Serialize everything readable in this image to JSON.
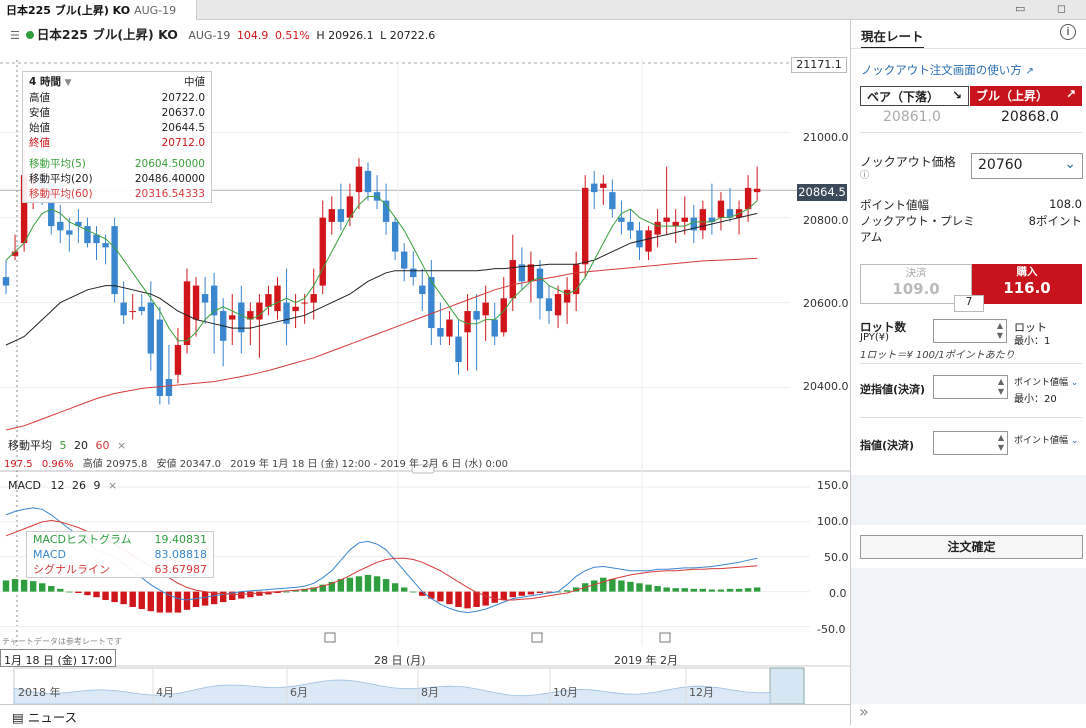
{
  "window": {
    "tab_title": "日本225 ブル(上昇) KO",
    "tab_sub": "AUG-19",
    "controls": "▭ ◻"
  },
  "infobar": {
    "name": "日本225 ブル(上昇) KO",
    "month": "AUG-19",
    "price": "104.9",
    "change": "0.51%",
    "high": "H 20926.1",
    "low": "L 20722.6"
  },
  "legend": {
    "interval": "4 時間",
    "header_right": "中値",
    "rows": [
      {
        "label": "高値",
        "value": "20722.0"
      },
      {
        "label": "安値",
        "value": "20637.0"
      },
      {
        "label": "始値",
        "value": "20644.5"
      },
      {
        "label": "終値",
        "value": "20712.0"
      },
      {
        "label": "移動平均(5)",
        "value": "20604.50000"
      },
      {
        "label": "移動平均(20)",
        "value": "20486.40000"
      },
      {
        "label": "移動平均(60)",
        "value": "20316.54333"
      }
    ]
  },
  "ma_bar": {
    "label": "移動平均",
    "p1": "5",
    "p2": "20",
    "p3": "60",
    "close": "×"
  },
  "range_bar": {
    "v1": "197.5",
    "v2": "0.96%",
    "hi": "高値 20975.8",
    "lo": "安値 20347.0",
    "range": "2019 年 1月 18 日 (金) 12:00 - 2019 年 2月 6 日 (水) 0:00"
  },
  "macd_bar": {
    "label": "MACD",
    "p1": "12",
    "p2": "26",
    "p3": "9",
    "close": "×"
  },
  "macd_legend": {
    "rows": [
      {
        "label": "MACDヒストグラム",
        "value": "19.40831"
      },
      {
        "label": "MACD",
        "value": "83.08818"
      },
      {
        "label": "シグナルライン",
        "value": "63.67987"
      }
    ]
  },
  "footer": {
    "note": "チャートデータは参考レートです",
    "cursor_date": "1月 18 日 (金) 17:00",
    "date_mid": "28 日 (月)",
    "date_right": "2019 年 2月"
  },
  "navigator": {
    "labels": [
      "2018 年",
      "4月",
      "6月",
      "8月",
      "10月",
      "12月"
    ]
  },
  "news": {
    "label": "ニュース"
  },
  "price_axis": {
    "top_label": "21171.1",
    "current": "20864.5",
    "ticks": [
      "21000.0",
      "20800.0",
      "20600.0",
      "20400.0"
    ]
  },
  "macd_axis": {
    "ticks": [
      "150.0",
      "100.0",
      "50.0",
      "0.0",
      "-50.0"
    ]
  },
  "panel": {
    "title": "現在レート",
    "info": "i",
    "help_link": "ノックアウト注文画面の使い方",
    "bear_label": "ベア（下落）",
    "bull_label": "ブル（上昇）",
    "bear_price": "20861.0",
    "bull_price": "20868.0",
    "ko_label": "ノックアウト価格",
    "ko_value": "20760",
    "point_width_label": "ポイント値幅",
    "point_width_value": "108.0",
    "premium_label": "ノックアウト・プレミアム",
    "premium_value": "8ポイント",
    "sell_label": "決済",
    "sell_value": "109.0",
    "buy_label": "購入",
    "buy_value": "116.0",
    "spread": "7",
    "lot_label": "ロット数",
    "lot_sub": "JPY(¥)",
    "lot_unit": "ロット",
    "lot_min": "最小：1",
    "lot_note": "1ロット＝¥ 100/1ポイントあたり",
    "stop_label": "逆指値(決済)",
    "stop_unit": "ポイント値幅",
    "stop_min": "最小：20",
    "limit_label": "指値(決済)",
    "limit_unit": "ポイント値幅",
    "confirm": "注文確定"
  },
  "colors": {
    "up": "#d0161b",
    "down": "#3a86cf",
    "ma5": "#3aa03a",
    "ma20": "#222222",
    "ma60": "#d63a3a",
    "hist": "#2e9e3e"
  },
  "chart_data": [
    {
      "type": "candlestick",
      "title": "日本225 ブル(上昇) KO",
      "ylim": [
        20300,
        21171.1
      ],
      "candles": [
        [
          20660,
          20700,
          20620,
          20640
        ],
        [
          20710,
          20760,
          20700,
          20720
        ],
        [
          20740,
          20960,
          20720,
          20900
        ],
        [
          20880,
          20960,
          20820,
          20900
        ],
        [
          20900,
          20920,
          20830,
          20870
        ],
        [
          20880,
          20900,
          20760,
          20780
        ],
        [
          20790,
          20830,
          20740,
          20770
        ],
        [
          20770,
          20800,
          20720,
          20760
        ],
        [
          20790,
          20820,
          20740,
          20780
        ],
        [
          20780,
          20800,
          20730,
          20740
        ],
        [
          20760,
          20780,
          20700,
          20740
        ],
        [
          20740,
          20760,
          20690,
          20730
        ],
        [
          20780,
          20800,
          20600,
          20620
        ],
        [
          20600,
          20650,
          20550,
          20570
        ],
        [
          20580,
          20620,
          20560,
          20580
        ],
        [
          20590,
          20620,
          20570,
          20580
        ],
        [
          20600,
          20650,
          20440,
          20480
        ],
        [
          20560,
          20590,
          20360,
          20380
        ],
        [
          20420,
          20500,
          20360,
          20380
        ],
        [
          20430,
          20540,
          20410,
          20500
        ],
        [
          20500,
          20680,
          20480,
          20650
        ],
        [
          20560,
          20660,
          20520,
          20640
        ],
        [
          20620,
          20660,
          20550,
          20600
        ],
        [
          20640,
          20670,
          20480,
          20570
        ],
        [
          20580,
          20610,
          20450,
          20510
        ],
        [
          20560,
          20620,
          20500,
          20570
        ],
        [
          20600,
          20640,
          20480,
          20530
        ],
        [
          20560,
          20600,
          20500,
          20580
        ],
        [
          20560,
          20620,
          20470,
          20600
        ],
        [
          20590,
          20640,
          20570,
          20620
        ],
        [
          20580,
          20660,
          20560,
          20640
        ],
        [
          20600,
          20680,
          20500,
          20550
        ],
        [
          20580,
          20620,
          20540,
          20590
        ],
        [
          20600,
          20620,
          20550,
          20600
        ],
        [
          20600,
          20680,
          20560,
          20620
        ],
        [
          20640,
          20840,
          20620,
          20800
        ],
        [
          20790,
          20850,
          20760,
          20820
        ],
        [
          20820,
          20880,
          20770,
          20790
        ],
        [
          20800,
          20880,
          20780,
          20850
        ],
        [
          20860,
          20940,
          20820,
          20920
        ],
        [
          20910,
          20930,
          20840,
          20860
        ],
        [
          20860,
          20900,
          20820,
          20840
        ],
        [
          20840,
          20880,
          20760,
          20790
        ],
        [
          20790,
          20800,
          20700,
          20720
        ],
        [
          20720,
          20740,
          20650,
          20680
        ],
        [
          20680,
          20720,
          20640,
          20660
        ],
        [
          20640,
          20680,
          20580,
          20620
        ],
        [
          20660,
          20700,
          20500,
          20540
        ],
        [
          20540,
          20600,
          20500,
          20520
        ],
        [
          20520,
          20580,
          20500,
          20560
        ],
        [
          20520,
          20560,
          20430,
          20460
        ],
        [
          20530,
          20620,
          20440,
          20580
        ],
        [
          20580,
          20620,
          20440,
          20560
        ],
        [
          20570,
          20640,
          20510,
          20600
        ],
        [
          20560,
          20600,
          20500,
          20520
        ],
        [
          20530,
          20660,
          20520,
          20610
        ],
        [
          20610,
          20760,
          20580,
          20700
        ],
        [
          20690,
          20730,
          20630,
          20650
        ],
        [
          20650,
          20720,
          20600,
          20690
        ],
        [
          20680,
          20700,
          20560,
          20610
        ],
        [
          20610,
          20640,
          20550,
          20580
        ],
        [
          20570,
          20640,
          20540,
          20620
        ],
        [
          20600,
          20660,
          20550,
          20630
        ],
        [
          20620,
          20720,
          20580,
          20690
        ],
        [
          20690,
          20900,
          20660,
          20870
        ],
        [
          20880,
          20910,
          20820,
          20860
        ],
        [
          20870,
          20900,
          20830,
          20880
        ],
        [
          20860,
          20890,
          20800,
          20820
        ],
        [
          20800,
          20840,
          20760,
          20790
        ],
        [
          20790,
          20820,
          20750,
          20770
        ],
        [
          20770,
          20790,
          20700,
          20730
        ],
        [
          20720,
          20780,
          20700,
          20770
        ],
        [
          20760,
          20820,
          20730,
          20790
        ],
        [
          20790,
          20920,
          20760,
          20800
        ],
        [
          20780,
          20820,
          20740,
          20790
        ],
        [
          20790,
          20850,
          20760,
          20800
        ],
        [
          20800,
          20830,
          20740,
          20770
        ],
        [
          20770,
          20840,
          20750,
          20820
        ],
        [
          20800,
          20880,
          20760,
          20790
        ],
        [
          20800,
          20860,
          20770,
          20840
        ],
        [
          20820,
          20870,
          20790,
          20800
        ],
        [
          20800,
          20840,
          20760,
          20820
        ],
        [
          20820,
          20900,
          20790,
          20870
        ],
        [
          20860,
          20920,
          20840,
          20868
        ]
      ],
      "ma5": [
        20700,
        20720,
        20740,
        20780,
        20810,
        20820,
        20810,
        20790,
        20780,
        20770,
        20760,
        20750,
        20730,
        20700,
        20670,
        20640,
        20610,
        20580,
        20540,
        20510,
        20510,
        20530,
        20560,
        20580,
        20590,
        20580,
        20570,
        20560,
        20570,
        20590,
        20600,
        20610,
        20600,
        20610,
        20640,
        20680,
        20720,
        20760,
        20800,
        20830,
        20850,
        20850,
        20830,
        20800,
        20770,
        20730,
        20690,
        20650,
        20620,
        20590,
        20560,
        20550,
        20550,
        20560,
        20560,
        20580,
        20610,
        20630,
        20650,
        20660,
        20640,
        20630,
        20620,
        20630,
        20660,
        20700,
        20740,
        20780,
        20810,
        20820,
        20800,
        20790,
        20780,
        20780,
        20780,
        20780,
        20790,
        20790,
        20790,
        20800,
        20800,
        20810,
        20820,
        20840
      ],
      "ma20": [
        20500,
        20510,
        20520,
        20540,
        20560,
        20580,
        20600,
        20610,
        20620,
        20630,
        20635,
        20640,
        20640,
        20635,
        20630,
        20625,
        20620,
        20610,
        20595,
        20580,
        20570,
        20560,
        20555,
        20550,
        20545,
        20540,
        20540,
        20540,
        20545,
        20550,
        20555,
        20560,
        20565,
        20570,
        20580,
        20590,
        20600,
        20610,
        20620,
        20635,
        20650,
        20660,
        20670,
        20675,
        20675,
        20675,
        20675,
        20675,
        20675,
        20675,
        20675,
        20675,
        20675,
        20677,
        20680,
        20680,
        20682,
        20685,
        20686,
        20688,
        20690,
        20690,
        20690,
        20690,
        20695,
        20700,
        20710,
        20720,
        20730,
        20740,
        20745,
        20750,
        20755,
        20760,
        20765,
        20770,
        20775,
        20780,
        20785,
        20790,
        20795,
        20800,
        20805,
        20810
      ],
      "ma60": [
        20300,
        20305,
        20310,
        20318,
        20326,
        20334,
        20342,
        20350,
        20358,
        20366,
        20374,
        20380,
        20386,
        20390,
        20394,
        20398,
        20400,
        20402,
        20404,
        20406,
        20408,
        20410,
        20412,
        20414,
        20418,
        20422,
        20426,
        20430,
        20435,
        20440,
        20446,
        20452,
        20458,
        20464,
        20470,
        20478,
        20486,
        20494,
        20502,
        20510,
        20518,
        20526,
        20534,
        20542,
        20550,
        20558,
        20566,
        20574,
        20582,
        20590,
        20598,
        20606,
        20614,
        20622,
        20630,
        20636,
        20642,
        20646,
        20650,
        20654,
        20658,
        20662,
        20666,
        20670,
        20672,
        20674,
        20676,
        20678,
        20680,
        20682,
        20684,
        20686,
        20688,
        20690,
        20692,
        20694,
        20696,
        20698,
        20699,
        20700,
        20701,
        20702,
        20703,
        20704
      ]
    },
    {
      "type": "bar",
      "title": "MACD",
      "ylim": [
        -60,
        160
      ],
      "hist": [
        16,
        18,
        17,
        15,
        12,
        8,
        4,
        0,
        -2,
        -5,
        -8,
        -12,
        -15,
        -18,
        -22,
        -25,
        -28,
        -30,
        -30,
        -30,
        -26,
        -22,
        -20,
        -18,
        -15,
        -12,
        -10,
        -8,
        -6,
        -4,
        -2,
        0,
        2,
        4,
        6,
        10,
        14,
        18,
        20,
        22,
        24,
        22,
        18,
        12,
        6,
        0,
        -6,
        -10,
        -14,
        -18,
        -22,
        -24,
        -22,
        -20,
        -16,
        -12,
        -8,
        -6,
        -4,
        -2,
        -1,
        0,
        2,
        6,
        12,
        16,
        20,
        18,
        16,
        14,
        12,
        10,
        8,
        6,
        5,
        5,
        4,
        4,
        3,
        3,
        4,
        4,
        5,
        6
      ],
      "macd": [
        110,
        115,
        118,
        120,
        118,
        110,
        100,
        90,
        80,
        70,
        60,
        55,
        50,
        40,
        30,
        20,
        10,
        2,
        -5,
        -10,
        -12,
        -10,
        -8,
        -6,
        -4,
        -2,
        0,
        1,
        2,
        3,
        4,
        5,
        6,
        8,
        12,
        20,
        30,
        45,
        60,
        70,
        72,
        68,
        60,
        45,
        30,
        15,
        0,
        -10,
        -18,
        -24,
        -28,
        -30,
        -28,
        -25,
        -20,
        -15,
        -10,
        -8,
        -6,
        -4,
        -2,
        0,
        10,
        22,
        30,
        35,
        36,
        34,
        32,
        30,
        30,
        30,
        32,
        32,
        33,
        34,
        34,
        35,
        36,
        38,
        40,
        42,
        45,
        48
      ],
      "signal": [
        80,
        85,
        90,
        95,
        100,
        102,
        100,
        96,
        92,
        86,
        80,
        74,
        68,
        60,
        52,
        44,
        36,
        28,
        20,
        12,
        6,
        2,
        0,
        -2,
        -3,
        -4,
        -4,
        -3,
        -2,
        -1,
        0,
        1,
        2,
        3,
        5,
        8,
        12,
        17,
        23,
        30,
        36,
        42,
        46,
        48,
        48,
        46,
        42,
        36,
        30,
        22,
        14,
        6,
        -1,
        -6,
        -10,
        -12,
        -12,
        -11,
        -10,
        -8,
        -6,
        -4,
        -2,
        2,
        6,
        10,
        14,
        18,
        21,
        24,
        26,
        28,
        29,
        30,
        30,
        31,
        32,
        32,
        33,
        33,
        34,
        35,
        36,
        37
      ]
    }
  ]
}
